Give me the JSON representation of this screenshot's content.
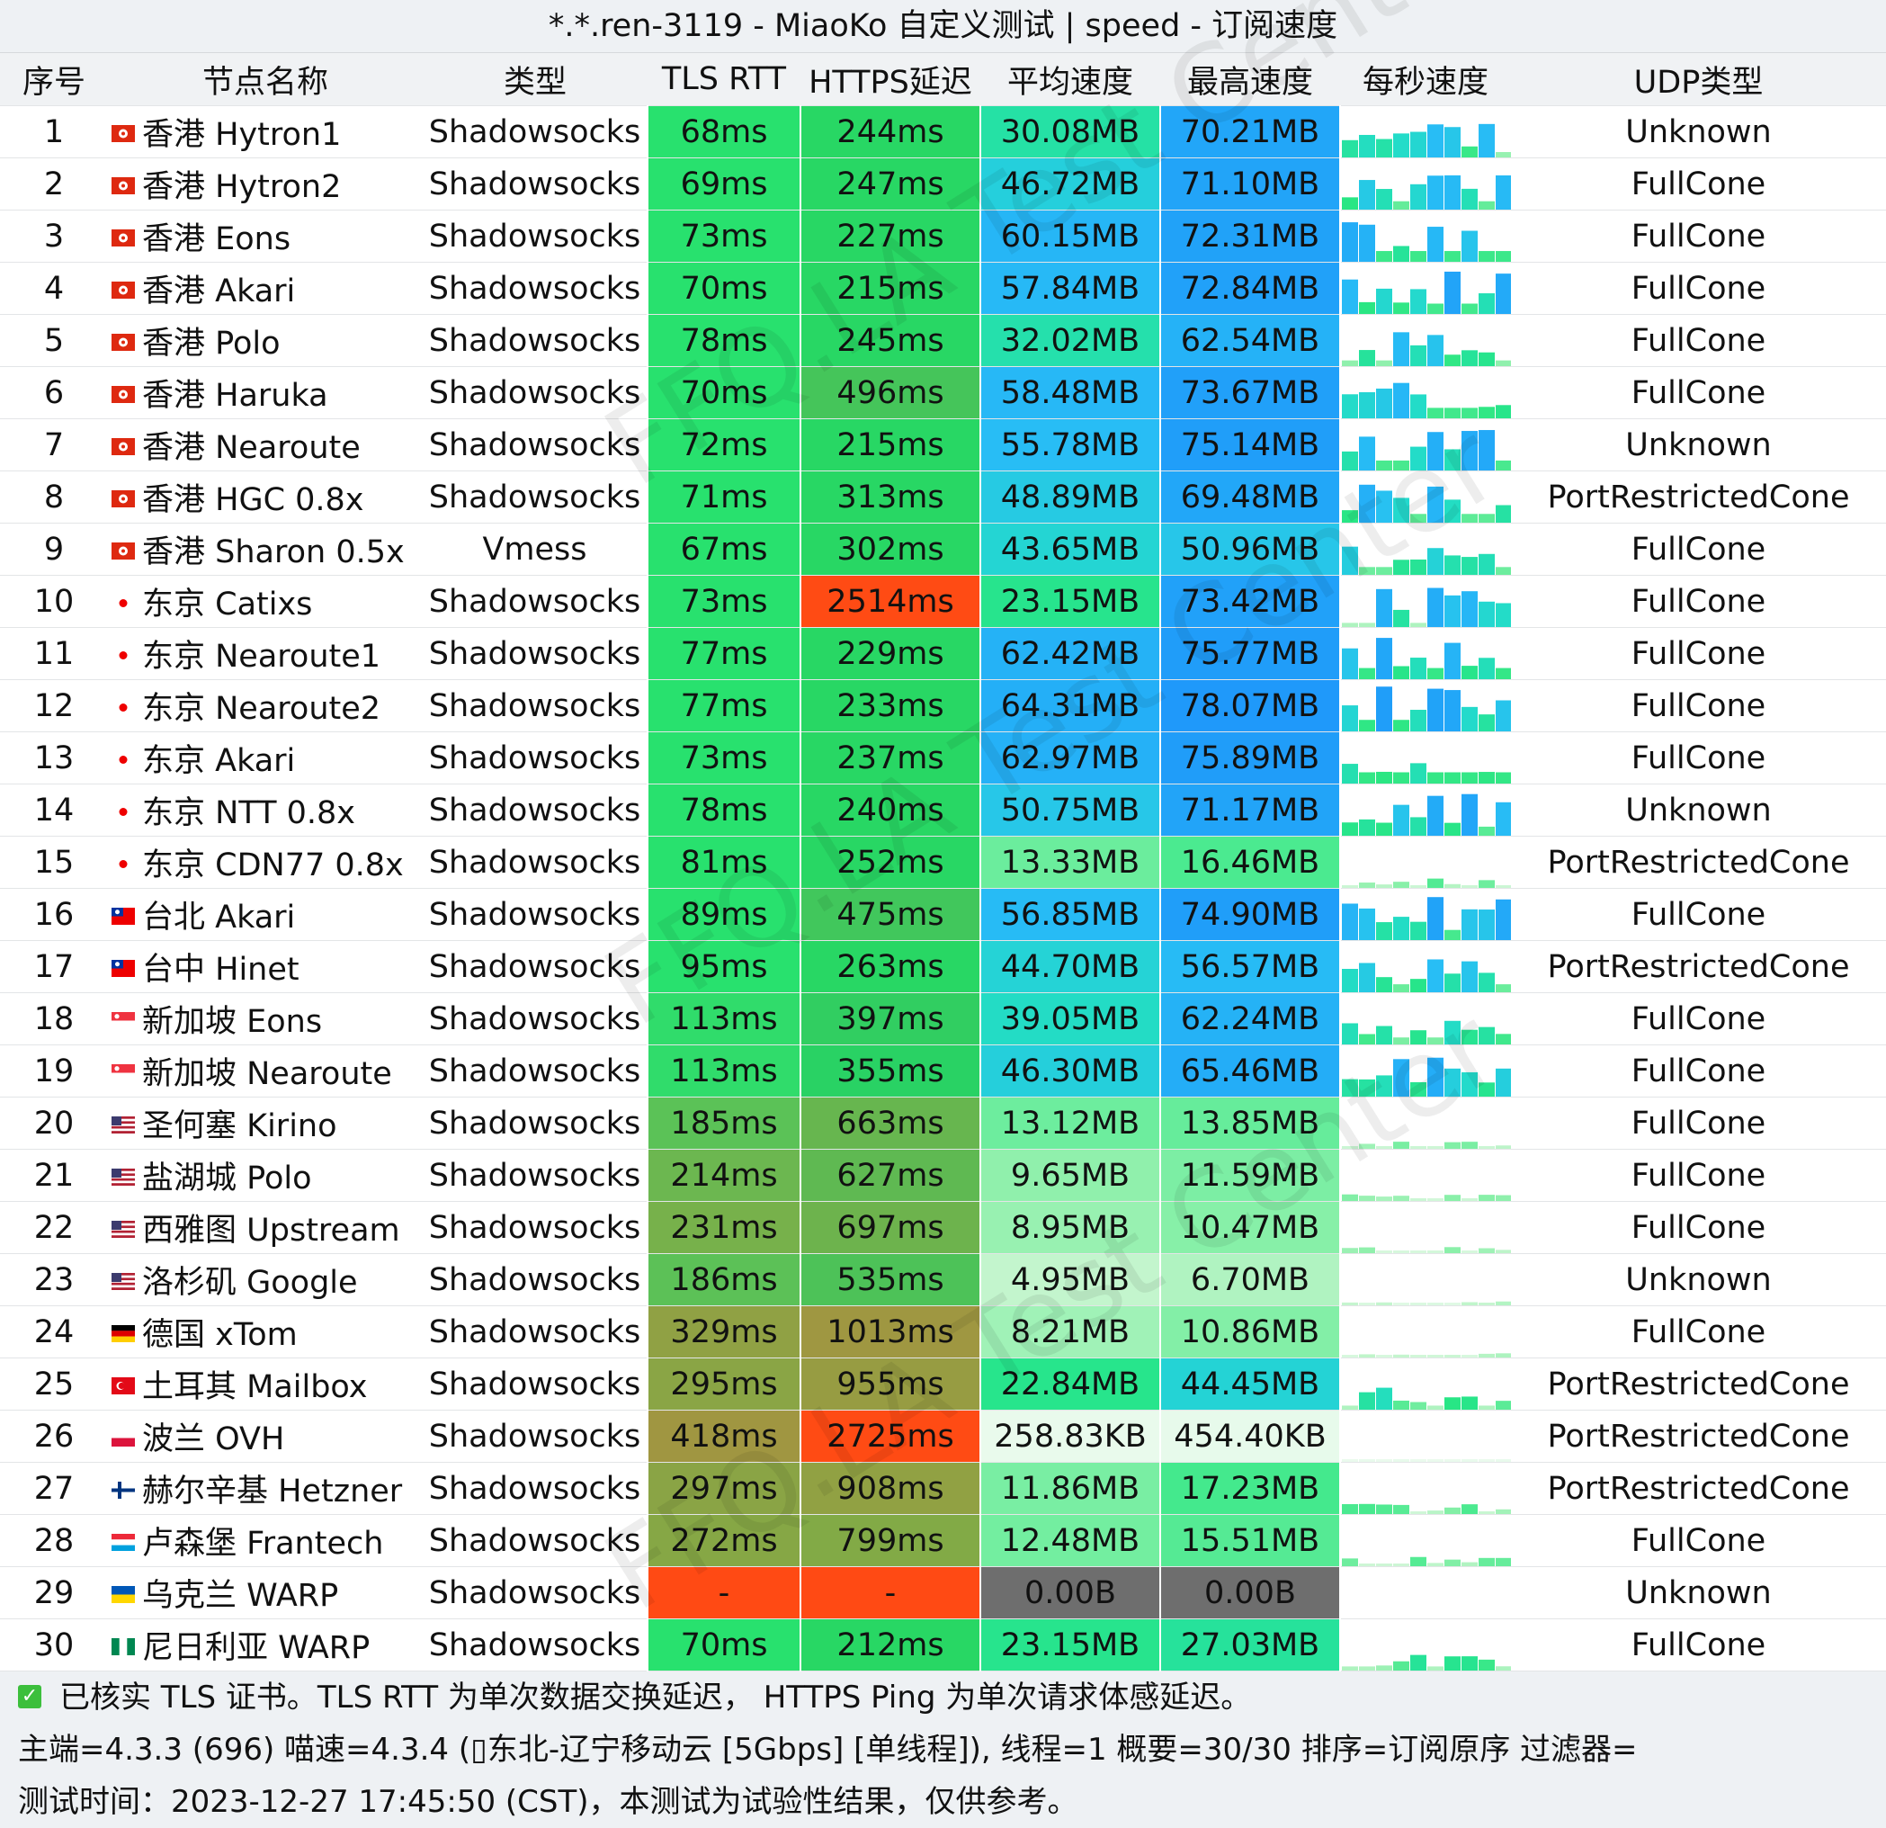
{
  "title": "*.*.ren-3119 - MiaoKo 自定义测试 | speed - 订阅速度",
  "watermark": "FFQ.LA Test Center",
  "headers": [
    "序号",
    "节点名称",
    "类型",
    "TLS RTT",
    "HTTPS延迟",
    "平均速度",
    "最高速度",
    "每秒速度",
    "UDP类型"
  ],
  "rows": [
    {
      "id": "1",
      "flag": "hk",
      "name": "香港 Hytron1",
      "type": "Shadowsocks",
      "tls": "68ms",
      "https": "244ms",
      "avg": "30.08MB",
      "max": "70.21MB",
      "udp": "Unknown"
    },
    {
      "id": "2",
      "flag": "hk",
      "name": "香港 Hytron2",
      "type": "Shadowsocks",
      "tls": "69ms",
      "https": "247ms",
      "avg": "46.72MB",
      "max": "71.10MB",
      "udp": "FullCone"
    },
    {
      "id": "3",
      "flag": "hk",
      "name": "香港 Eons",
      "type": "Shadowsocks",
      "tls": "73ms",
      "https": "227ms",
      "avg": "60.15MB",
      "max": "72.31MB",
      "udp": "FullCone"
    },
    {
      "id": "4",
      "flag": "hk",
      "name": "香港 Akari",
      "type": "Shadowsocks",
      "tls": "70ms",
      "https": "215ms",
      "avg": "57.84MB",
      "max": "72.84MB",
      "udp": "FullCone"
    },
    {
      "id": "5",
      "flag": "hk",
      "name": "香港 Polo",
      "type": "Shadowsocks",
      "tls": "78ms",
      "https": "245ms",
      "avg": "32.02MB",
      "max": "62.54MB",
      "udp": "FullCone"
    },
    {
      "id": "6",
      "flag": "hk",
      "name": "香港 Haruka",
      "type": "Shadowsocks",
      "tls": "70ms",
      "https": "496ms",
      "avg": "58.48MB",
      "max": "73.67MB",
      "udp": "FullCone"
    },
    {
      "id": "7",
      "flag": "hk",
      "name": "香港 Nearoute",
      "type": "Shadowsocks",
      "tls": "72ms",
      "https": "215ms",
      "avg": "55.78MB",
      "max": "75.14MB",
      "udp": "Unknown"
    },
    {
      "id": "8",
      "flag": "hk",
      "name": "香港 HGC 0.8x",
      "type": "Shadowsocks",
      "tls": "71ms",
      "https": "313ms",
      "avg": "48.89MB",
      "max": "69.48MB",
      "udp": "PortRestrictedCone"
    },
    {
      "id": "9",
      "flag": "hk",
      "name": "香港 Sharon 0.5x",
      "type": "Vmess",
      "tls": "67ms",
      "https": "302ms",
      "avg": "43.65MB",
      "max": "50.96MB",
      "udp": "FullCone"
    },
    {
      "id": "10",
      "flag": "jp",
      "name": "东京 Catixs",
      "type": "Shadowsocks",
      "tls": "73ms",
      "https": "2514ms",
      "avg": "23.15MB",
      "max": "73.42MB",
      "udp": "FullCone"
    },
    {
      "id": "11",
      "flag": "jp",
      "name": "东京 Nearoute1",
      "type": "Shadowsocks",
      "tls": "77ms",
      "https": "229ms",
      "avg": "62.42MB",
      "max": "75.77MB",
      "udp": "FullCone"
    },
    {
      "id": "12",
      "flag": "jp",
      "name": "东京 Nearoute2",
      "type": "Shadowsocks",
      "tls": "77ms",
      "https": "233ms",
      "avg": "64.31MB",
      "max": "78.07MB",
      "udp": "FullCone"
    },
    {
      "id": "13",
      "flag": "jp",
      "name": "东京 Akari",
      "type": "Shadowsocks",
      "tls": "73ms",
      "https": "237ms",
      "avg": "62.97MB",
      "max": "75.89MB",
      "udp": "FullCone"
    },
    {
      "id": "14",
      "flag": "jp",
      "name": "东京 NTT 0.8x",
      "type": "Shadowsocks",
      "tls": "78ms",
      "https": "240ms",
      "avg": "50.75MB",
      "max": "71.17MB",
      "udp": "Unknown"
    },
    {
      "id": "15",
      "flag": "jp",
      "name": "东京 CDN77 0.8x",
      "type": "Shadowsocks",
      "tls": "81ms",
      "https": "252ms",
      "avg": "13.33MB",
      "max": "16.46MB",
      "udp": "PortRestrictedCone"
    },
    {
      "id": "16",
      "flag": "tw",
      "name": "台北 Akari",
      "type": "Shadowsocks",
      "tls": "89ms",
      "https": "475ms",
      "avg": "56.85MB",
      "max": "74.90MB",
      "udp": "FullCone"
    },
    {
      "id": "17",
      "flag": "tw",
      "name": "台中 Hinet",
      "type": "Shadowsocks",
      "tls": "95ms",
      "https": "263ms",
      "avg": "44.70MB",
      "max": "56.57MB",
      "udp": "PortRestrictedCone"
    },
    {
      "id": "18",
      "flag": "sg",
      "name": "新加坡 Eons",
      "type": "Shadowsocks",
      "tls": "113ms",
      "https": "397ms",
      "avg": "39.05MB",
      "max": "62.24MB",
      "udp": "FullCone"
    },
    {
      "id": "19",
      "flag": "sg",
      "name": "新加坡 Nearoute",
      "type": "Shadowsocks",
      "tls": "113ms",
      "https": "355ms",
      "avg": "46.30MB",
      "max": "65.46MB",
      "udp": "FullCone"
    },
    {
      "id": "20",
      "flag": "us",
      "name": "圣何塞 Kirino",
      "type": "Shadowsocks",
      "tls": "185ms",
      "https": "663ms",
      "avg": "13.12MB",
      "max": "13.85MB",
      "udp": "FullCone"
    },
    {
      "id": "21",
      "flag": "us",
      "name": "盐湖城 Polo",
      "type": "Shadowsocks",
      "tls": "214ms",
      "https": "627ms",
      "avg": "9.65MB",
      "max": "11.59MB",
      "udp": "FullCone"
    },
    {
      "id": "22",
      "flag": "us",
      "name": "西雅图 Upstream",
      "type": "Shadowsocks",
      "tls": "231ms",
      "https": "697ms",
      "avg": "8.95MB",
      "max": "10.47MB",
      "udp": "FullCone"
    },
    {
      "id": "23",
      "flag": "us",
      "name": "洛杉矶 Google",
      "type": "Shadowsocks",
      "tls": "186ms",
      "https": "535ms",
      "avg": "4.95MB",
      "max": "6.70MB",
      "udp": "Unknown"
    },
    {
      "id": "24",
      "flag": "de",
      "name": "德国 xTom",
      "type": "Shadowsocks",
      "tls": "329ms",
      "https": "1013ms",
      "avg": "8.21MB",
      "max": "10.86MB",
      "udp": "FullCone"
    },
    {
      "id": "25",
      "flag": "tr",
      "name": "土耳其 Mailbox",
      "type": "Shadowsocks",
      "tls": "295ms",
      "https": "955ms",
      "avg": "22.84MB",
      "max": "44.45MB",
      "udp": "PortRestrictedCone"
    },
    {
      "id": "26",
      "flag": "pl",
      "name": "波兰 OVH",
      "type": "Shadowsocks",
      "tls": "418ms",
      "https": "2725ms",
      "avg": "258.83KB",
      "max": "454.40KB",
      "udp": "PortRestrictedCone"
    },
    {
      "id": "27",
      "flag": "fi",
      "name": "赫尔辛基 Hetzner",
      "type": "Shadowsocks",
      "tls": "297ms",
      "https": "908ms",
      "avg": "11.86MB",
      "max": "17.23MB",
      "udp": "PortRestrictedCone"
    },
    {
      "id": "28",
      "flag": "lu",
      "name": "卢森堡 Frantech",
      "type": "Shadowsocks",
      "tls": "272ms",
      "https": "799ms",
      "avg": "12.48MB",
      "max": "15.51MB",
      "udp": "FullCone"
    },
    {
      "id": "29",
      "flag": "ua",
      "name": "乌克兰 WARP",
      "type": "Shadowsocks",
      "tls": "-",
      "https": "-",
      "avg": "0.00B",
      "max": "0.00B",
      "udp": "Unknown"
    },
    {
      "id": "30",
      "flag": "ng",
      "name": "尼日利亚 WARP",
      "type": "Shadowsocks",
      "tls": "70ms",
      "https": "212ms",
      "avg": "23.15MB",
      "max": "27.03MB",
      "udp": "FullCone"
    }
  ],
  "footer": {
    "line1": "已核实 TLS 证书。TLS RTT 为单次数据交换延迟， HTTPS Ping 为单次请求体感延迟。",
    "line2": "主端=4.3.3 (696) 喵速=4.3.4 (▯东北-辽宁移动云 [5Gbps] [单线程]), 线程=1 概要=30/30 排序=订阅原序 过滤器=",
    "line3": "测试时间：2023-12-27 17:45:50 (CST)，本测试为试验性结果，仅供参考。"
  }
}
